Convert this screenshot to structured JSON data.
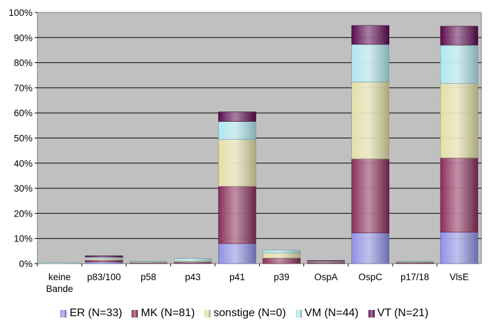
{
  "chart_data": {
    "type": "bar",
    "stacked": true,
    "categories": [
      "keine Bande",
      "p83/100",
      "p58",
      "p43",
      "p41",
      "p39",
      "OspA",
      "OspC",
      "p17/18",
      "VlsE"
    ],
    "y_ticks": [
      "0%",
      "10%",
      "20%",
      "30%",
      "40%",
      "50%",
      "60%",
      "70%",
      "80%",
      "90%",
      "100%"
    ],
    "ylim": [
      0,
      100
    ],
    "y_unit": "%",
    "grid": true,
    "legend_position": "bottom",
    "series": [
      {
        "name": "ER (N=33)",
        "color": "#8f8fe6",
        "values": [
          0.0,
          0.7,
          0.1,
          0.2,
          8.0,
          0.0,
          0.1,
          12.2,
          0.1,
          12.5
        ]
      },
      {
        "name": "MK (N=81)",
        "color": "#8b2d5a",
        "values": [
          0.0,
          0.7,
          0.2,
          0.4,
          22.8,
          2.2,
          0.4,
          29.5,
          0.3,
          29.6
        ]
      },
      {
        "name": "sonstige (N=0)",
        "color": "#e4e0a6",
        "values": [
          0.0,
          0.6,
          0.4,
          0.4,
          18.6,
          2.0,
          0.3,
          30.6,
          0.3,
          29.6
        ]
      },
      {
        "name": "VM (N=44)",
        "color": "#aee8ee",
        "values": [
          0.3,
          0.6,
          0.1,
          1.0,
          7.2,
          1.1,
          0.2,
          15.0,
          0.1,
          15.3
        ]
      },
      {
        "name": "VT (N=21)",
        "color": "#5b0a4e",
        "values": [
          0.0,
          0.5,
          0.0,
          0.0,
          3.8,
          0.0,
          0.2,
          7.5,
          0.0,
          7.5
        ]
      }
    ]
  }
}
